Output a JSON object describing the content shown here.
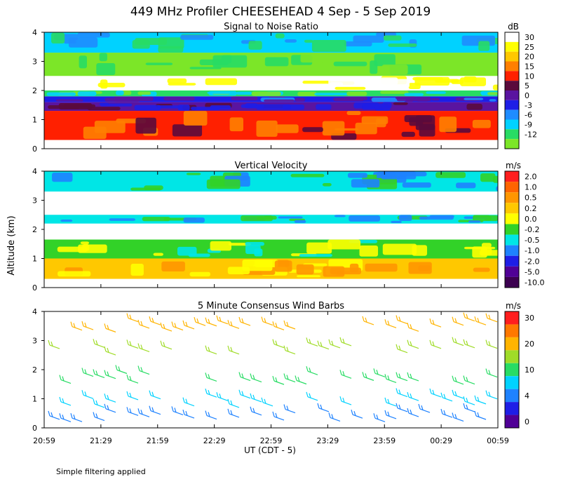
{
  "title": "449 MHz Profiler CHEESEHEAD  4 Sep -  5 Sep 2019",
  "y_axis_label": "Altitude (km)",
  "x_axis_label": "UT  (CDT - 5)",
  "footnote": "Simple filtering applied",
  "x_ticks": [
    "20:59",
    "21:29",
    "21:59",
    "22:29",
    "22:59",
    "23:29",
    "23:59",
    "00:29",
    "00:59"
  ],
  "y_ticks": [
    "0",
    "1",
    "2",
    "3",
    "4"
  ],
  "chart_data": [
    {
      "type": "heatmap",
      "title": "Signal to Noise Ratio",
      "unit": "dB",
      "ylim": [
        0,
        4
      ],
      "colorbar": [
        {
          "label": "30",
          "color": "#ffffff"
        },
        {
          "label": "25",
          "color": "#ffff00"
        },
        {
          "label": "20",
          "color": "#ffc800"
        },
        {
          "label": "15",
          "color": "#ff7f00"
        },
        {
          "label": "10",
          "color": "#ff2000"
        },
        {
          "label": "5",
          "color": "#5a0a3c"
        },
        {
          "label": "0",
          "color": "#5a14a0"
        },
        {
          "label": "-3",
          "color": "#1e1ee6"
        },
        {
          "label": "-6",
          "color": "#1e8cff"
        },
        {
          "label": "-9",
          "color": "#00d2ff"
        },
        {
          "label": "-12",
          "color": "#28dc64"
        },
        {
          "label": "",
          "color": "#7ce628"
        }
      ],
      "bands": [
        {
          "from": 0.3,
          "to": 1.3,
          "color": "#ff2000",
          "label": "10"
        },
        {
          "from": 1.3,
          "to": 1.6,
          "color": "#5a14a0",
          "label": "0"
        },
        {
          "from": 1.6,
          "to": 1.8,
          "color": "#1e1ee6",
          "label": "-3"
        },
        {
          "from": 1.8,
          "to": 2.0,
          "color": "#28dc64",
          "label": "-12"
        },
        {
          "from": 2.0,
          "to": 2.5,
          "color": "#ffffff",
          "label": "30"
        },
        {
          "from": 2.5,
          "to": 3.3,
          "color": "#7ce628",
          "label": "-12"
        },
        {
          "from": 3.3,
          "to": 4.0,
          "color": "#00d2ff",
          "label": "-9"
        }
      ]
    },
    {
      "type": "heatmap",
      "title": "Vertical Velocity",
      "unit": "m/s",
      "ylim": [
        0,
        4
      ],
      "colorbar": [
        {
          "label": "2.0",
          "color": "#ff1e1e"
        },
        {
          "label": "1.0",
          "color": "#ff6400"
        },
        {
          "label": "0.5",
          "color": "#ff9600"
        },
        {
          "label": "0.2",
          "color": "#ffc800"
        },
        {
          "label": "0.0",
          "color": "#ffff00"
        },
        {
          "label": "-0.2",
          "color": "#32d228"
        },
        {
          "label": "-0.5",
          "color": "#00e6e6"
        },
        {
          "label": "-1.0",
          "color": "#1e82ff"
        },
        {
          "label": "-2.0",
          "color": "#1e1ee6"
        },
        {
          "label": "-5.0",
          "color": "#500096"
        },
        {
          "label": "-10.0",
          "color": "#3c0050"
        }
      ],
      "bands": [
        {
          "from": 0.3,
          "to": 1.0,
          "color": "#ffc800",
          "label": "0.2"
        },
        {
          "from": 1.0,
          "to": 1.65,
          "color": "#32d228",
          "label": "-0.2"
        },
        {
          "from": 2.2,
          "to": 2.5,
          "color": "#00e6e6",
          "label": "-0.5"
        },
        {
          "from": 3.3,
          "to": 4.0,
          "color": "#00e6e6",
          "label": "-0.5"
        }
      ]
    },
    {
      "type": "wind_barbs",
      "title": "5 Minute Consensus Wind Barbs",
      "unit": "m/s",
      "ylim": [
        0,
        4
      ],
      "colorbar": [
        {
          "label": "30",
          "color": "#ff1e1e"
        },
        {
          "label": "",
          "color": "#ff7800"
        },
        {
          "label": "20",
          "color": "#ffb400"
        },
        {
          "label": "",
          "color": "#a0dc28"
        },
        {
          "label": "10",
          "color": "#28dc64"
        },
        {
          "label": "",
          "color": "#00d2ff"
        },
        {
          "label": "4",
          "color": "#1e82ff"
        },
        {
          "label": "",
          "color": "#1e1ee6"
        },
        {
          "label": "0",
          "color": "#500096"
        }
      ],
      "rows": [
        {
          "alt": 3.6,
          "color": "#ffb400",
          "speed_label": "20"
        },
        {
          "alt": 2.8,
          "color": "#a0dc28",
          "speed_label": "15"
        },
        {
          "alt": 1.8,
          "color": "#28dc64",
          "speed_label": "10"
        },
        {
          "alt": 1.0,
          "color": "#00d2ff",
          "speed_label": "6"
        },
        {
          "alt": 0.5,
          "color": "#1e82ff",
          "speed_label": "4"
        }
      ]
    }
  ]
}
